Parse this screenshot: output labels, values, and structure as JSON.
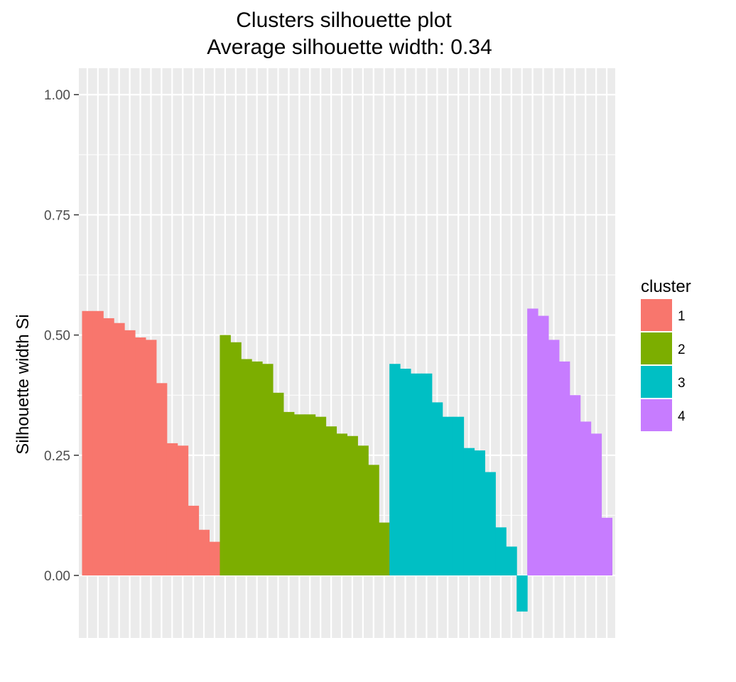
{
  "chart_data": {
    "type": "bar",
    "title": "Clusters silhouette plot",
    "subtitle": "Average silhouette width: 0.34",
    "xlabel": "",
    "ylabel": "Silhouette width Si",
    "ylim": [
      -0.13,
      1.055
    ],
    "yticks": [
      "0.00",
      "0.25",
      "0.50",
      "0.75",
      "1.00"
    ],
    "ytick_values": [
      0,
      0.25,
      0.5,
      0.75,
      1.0
    ],
    "grid": true,
    "legend_position": "right",
    "legend_title": "cluster",
    "series": [
      {
        "name": "1",
        "color": "#F8766D",
        "values": [
          0.55,
          0.55,
          0.535,
          0.525,
          0.51,
          0.495,
          0.49,
          0.4,
          0.275,
          0.27,
          0.145,
          0.095,
          0.07
        ]
      },
      {
        "name": "2",
        "color": "#7CAE00",
        "values": [
          0.5,
          0.485,
          0.45,
          0.445,
          0.44,
          0.38,
          0.34,
          0.335,
          0.335,
          0.33,
          0.31,
          0.295,
          0.29,
          0.27,
          0.23,
          0.11
        ]
      },
      {
        "name": "3",
        "color": "#00BFC4",
        "values": [
          0.44,
          0.43,
          0.42,
          0.42,
          0.36,
          0.33,
          0.33,
          0.265,
          0.26,
          0.215,
          0.1,
          0.06,
          -0.075
        ]
      },
      {
        "name": "4",
        "color": "#C77CFF",
        "values": [
          0.555,
          0.54,
          0.49,
          0.445,
          0.375,
          0.32,
          0.295,
          0.12
        ]
      }
    ]
  }
}
